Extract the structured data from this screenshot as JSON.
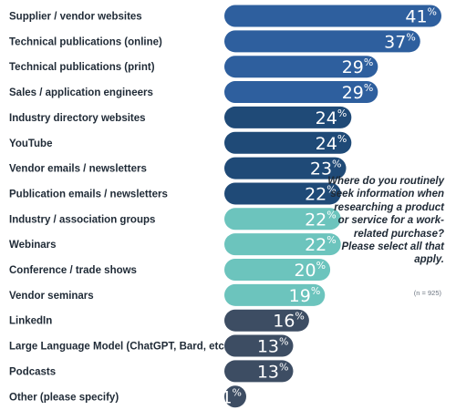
{
  "chart_data": {
    "type": "bar",
    "orientation": "horizontal",
    "categories": [
      "Supplier / vendor websites",
      "Technical publications (online)",
      "Technical publications (print)",
      "Sales / application engineers",
      "Industry directory websites",
      "YouTube",
      "Vendor emails / newsletters",
      "Publication emails / newsletters",
      "Industry / association groups",
      "Webinars",
      "Conference / trade shows",
      "Vendor seminars",
      "LinkedIn",
      "Large Language Model (ChatGPT, Bard, etc.)",
      "Podcasts",
      "Other (please specify)"
    ],
    "values": [
      41,
      37,
      29,
      29,
      24,
      24,
      23,
      22,
      22,
      22,
      20,
      19,
      16,
      13,
      13,
      1
    ],
    "bar_colors": [
      "#2e5f9e",
      "#2e5f9e",
      "#2e5f9e",
      "#2e5f9e",
      "#1f4a77",
      "#1f4a77",
      "#1f4a77",
      "#1f4a77",
      "#6cc4bd",
      "#6cc4bd",
      "#6cc4bd",
      "#6cc4bd",
      "#3d4d63",
      "#3d4d63",
      "#3d4d63",
      "#3d4d63"
    ],
    "value_suffix": "%",
    "xlim": [
      0,
      41
    ],
    "grid": false,
    "legend": "none"
  },
  "annotation": {
    "question": "Where do you routinely seek information when researching a product or service for a work-related purchase? Please select all that apply.",
    "sample_size": "(n = 925)"
  }
}
